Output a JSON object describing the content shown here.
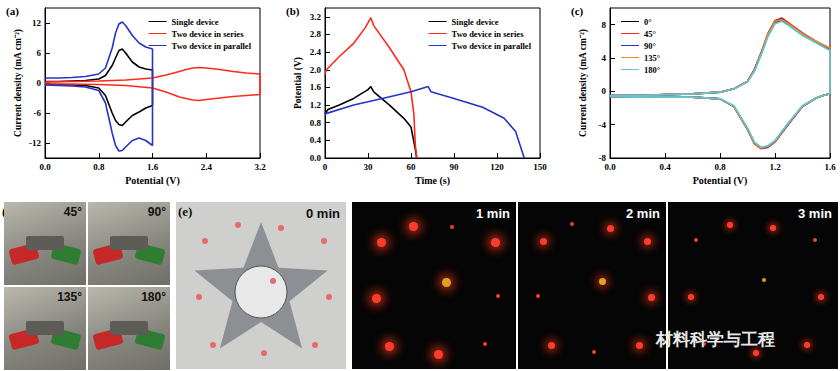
{
  "chart_data": [
    {
      "type": "line",
      "title": "(a)",
      "x_label": "Potential (V)",
      "y_label": "Current density (mA cm⁻²)",
      "xlim": [
        0,
        3.2
      ],
      "xticks": [
        {
          "value": 0,
          "label": "0.0"
        },
        0.8,
        1.6,
        2.4,
        3.2
      ],
      "ylim": [
        -15,
        15
      ],
      "yticks": [
        -12,
        -6,
        0,
        6,
        12
      ],
      "grid": false,
      "legend": "upper right",
      "series": [
        {
          "name": "Single device",
          "color": "#000000",
          "x": [
            0,
            0.2,
            0.4,
            0.6,
            0.8,
            0.9,
            1.0,
            1.05,
            1.1,
            1.15,
            1.2,
            1.3,
            1.4,
            1.5,
            1.6,
            1.6,
            1.5,
            1.4,
            1.3,
            1.2,
            1.15,
            1.1,
            1.05,
            1.0,
            0.9,
            0.8,
            0.6,
            0.4,
            0.2,
            0
          ],
          "values": [
            0.3,
            0.3,
            0.4,
            0.5,
            0.8,
            1.5,
            3.5,
            5.0,
            6.5,
            6.8,
            6.0,
            4.2,
            3.2,
            2.8,
            2.6,
            -4.5,
            -5.0,
            -5.8,
            -6.5,
            -7.8,
            -8.5,
            -8.3,
            -7.5,
            -6.0,
            -2.5,
            -1.0,
            -0.5,
            -0.4,
            -0.3,
            -0.2
          ]
        },
        {
          "name": "Two device in series",
          "color": "#ff2a1a",
          "x": [
            0,
            0.4,
            0.8,
            1.2,
            1.6,
            1.8,
            2.0,
            2.1,
            2.2,
            2.3,
            2.4,
            2.6,
            2.8,
            3.0,
            3.2,
            3.2,
            3.0,
            2.8,
            2.6,
            2.4,
            2.3,
            2.2,
            2.0,
            1.8,
            1.6,
            1.2,
            0.8,
            0.4,
            0
          ],
          "values": [
            0.2,
            0.3,
            0.4,
            0.6,
            1.0,
            1.6,
            2.3,
            2.7,
            3.0,
            3.1,
            3.0,
            2.7,
            2.3,
            2.0,
            1.8,
            -2.3,
            -2.5,
            -2.7,
            -3.0,
            -3.3,
            -3.5,
            -3.4,
            -2.8,
            -1.8,
            -1.0,
            -0.5,
            -0.3,
            -0.2,
            -0.2
          ]
        },
        {
          "name": "Two device in parallel",
          "color": "#2335c8",
          "x": [
            0,
            0.2,
            0.4,
            0.6,
            0.8,
            0.9,
            1.0,
            1.05,
            1.1,
            1.15,
            1.2,
            1.3,
            1.4,
            1.5,
            1.6,
            1.6,
            1.5,
            1.4,
            1.3,
            1.2,
            1.15,
            1.1,
            1.05,
            1.0,
            0.9,
            0.8,
            0.6,
            0.4,
            0.2,
            0
          ],
          "values": [
            1.0,
            1.0,
            1.1,
            1.3,
            1.8,
            3.0,
            7.0,
            10.0,
            11.8,
            12.2,
            11.5,
            9.5,
            8.0,
            7.2,
            6.8,
            -12.5,
            -11.5,
            -11.0,
            -11.5,
            -12.8,
            -13.5,
            -13.6,
            -12.5,
            -10.0,
            -4.0,
            -1.5,
            -0.8,
            -0.6,
            -0.5,
            -0.4
          ]
        }
      ]
    },
    {
      "type": "line",
      "title": "(b)",
      "x_label": "Time (s)",
      "y_label": "Potential (V)",
      "xlim": [
        0,
        150
      ],
      "xticks": [
        0,
        30,
        60,
        90,
        120,
        150
      ],
      "ylim": [
        0,
        3.4
      ],
      "yticks": [
        {
          "value": 0,
          "label": "0.0"
        },
        0.4,
        0.8,
        1.2,
        1.6,
        {
          "value": 2,
          "label": "2.0"
        },
        2.4,
        2.8,
        3.2
      ],
      "grid": false,
      "legend": "upper right",
      "series": [
        {
          "name": "Single device",
          "color": "#000000",
          "x": [
            0,
            2,
            10,
            20,
            30,
            32,
            34,
            45,
            55,
            60,
            63,
            64
          ],
          "values": [
            1.0,
            1.1,
            1.2,
            1.35,
            1.55,
            1.62,
            1.5,
            1.2,
            0.9,
            0.7,
            0.2,
            0
          ]
        },
        {
          "name": "Two device in series",
          "color": "#ff2a1a",
          "x": [
            0,
            1,
            10,
            20,
            28,
            32,
            34,
            45,
            55,
            60,
            62,
            63,
            64
          ],
          "values": [
            1.9,
            2.0,
            2.3,
            2.6,
            2.95,
            3.18,
            3.0,
            2.5,
            2.0,
            1.5,
            1.0,
            0.3,
            0
          ]
        },
        {
          "name": "Two device in parallel",
          "color": "#2335c8",
          "x": [
            0,
            20,
            40,
            60,
            72,
            74,
            90,
            110,
            125,
            133,
            137,
            139
          ],
          "values": [
            1.0,
            1.2,
            1.35,
            1.5,
            1.62,
            1.5,
            1.35,
            1.15,
            0.9,
            0.6,
            0.2,
            0
          ]
        }
      ]
    },
    {
      "type": "line",
      "title": "(c)",
      "x_label": "Potential (V)",
      "y_label": "Current density (mA cm⁻²)",
      "xlim": [
        0,
        1.6
      ],
      "xticks": [
        {
          "value": 0,
          "label": "0.0"
        },
        0.4,
        0.8,
        1.2,
        1.6
      ],
      "ylim": [
        -8,
        10
      ],
      "yticks": [
        -8,
        -4,
        0,
        4,
        8
      ],
      "grid": false,
      "legend": "upper left",
      "series": [
        {
          "name": "0°",
          "color": "#000000",
          "x": [
            0,
            0.2,
            0.4,
            0.6,
            0.8,
            0.9,
            1.0,
            1.05,
            1.1,
            1.15,
            1.2,
            1.25,
            1.3,
            1.4,
            1.5,
            1.6,
            1.6,
            1.55,
            1.5,
            1.4,
            1.3,
            1.2,
            1.15,
            1.1,
            1.05,
            1.0,
            0.9,
            0.8,
            0.6,
            0.4,
            0.2,
            0
          ],
          "values": [
            -0.5,
            -0.5,
            -0.4,
            -0.3,
            -0.1,
            0.3,
            1.2,
            2.5,
            4.5,
            6.8,
            8.3,
            8.5,
            8.0,
            6.8,
            5.9,
            5.0,
            -0.3,
            -0.5,
            -0.8,
            -1.8,
            -3.8,
            -6.0,
            -6.6,
            -6.8,
            -6.2,
            -4.5,
            -1.8,
            -0.9,
            -0.7,
            -0.7,
            -0.7,
            -0.6
          ]
        },
        {
          "name": "45°",
          "color": "#ff2a1a",
          "x": [
            0,
            0.2,
            0.4,
            0.6,
            0.8,
            0.9,
            1.0,
            1.05,
            1.1,
            1.15,
            1.2,
            1.25,
            1.3,
            1.4,
            1.5,
            1.6,
            1.6,
            1.55,
            1.5,
            1.4,
            1.3,
            1.2,
            1.15,
            1.1,
            1.05,
            1.0,
            0.9,
            0.8,
            0.6,
            0.4,
            0.2,
            0
          ],
          "values": [
            -0.5,
            -0.5,
            -0.4,
            -0.3,
            -0.1,
            0.3,
            1.2,
            2.6,
            4.7,
            7.0,
            8.5,
            8.8,
            8.2,
            7.0,
            6.0,
            5.1,
            -0.3,
            -0.5,
            -0.8,
            -1.8,
            -3.9,
            -6.1,
            -6.7,
            -6.9,
            -6.3,
            -4.6,
            -1.8,
            -0.9,
            -0.7,
            -0.7,
            -0.7,
            -0.6
          ]
        },
        {
          "name": "90°",
          "color": "#2335c8",
          "x": [
            0,
            0.2,
            0.4,
            0.6,
            0.8,
            0.9,
            1.0,
            1.05,
            1.1,
            1.15,
            1.2,
            1.25,
            1.3,
            1.4,
            1.5,
            1.6,
            1.6,
            1.55,
            1.5,
            1.4,
            1.3,
            1.2,
            1.15,
            1.1,
            1.05,
            1.0,
            0.9,
            0.8,
            0.6,
            0.4,
            0.2,
            0
          ],
          "values": [
            -0.5,
            -0.5,
            -0.4,
            -0.3,
            -0.1,
            0.3,
            1.2,
            2.6,
            4.6,
            6.9,
            8.4,
            8.7,
            8.1,
            6.9,
            6.0,
            5.1,
            -0.3,
            -0.5,
            -0.8,
            -1.8,
            -3.9,
            -6.0,
            -6.7,
            -6.8,
            -6.2,
            -4.5,
            -1.8,
            -0.9,
            -0.7,
            -0.7,
            -0.7,
            -0.6
          ]
        },
        {
          "name": "135°",
          "color": "#f58a1f",
          "x": [
            0,
            0.2,
            0.4,
            0.6,
            0.8,
            0.9,
            1.0,
            1.05,
            1.1,
            1.15,
            1.2,
            1.25,
            1.3,
            1.4,
            1.5,
            1.6,
            1.6,
            1.55,
            1.5,
            1.4,
            1.3,
            1.2,
            1.15,
            1.1,
            1.05,
            1.0,
            0.9,
            0.8,
            0.6,
            0.4,
            0.2,
            0
          ],
          "values": [
            -0.5,
            -0.5,
            -0.4,
            -0.3,
            -0.1,
            0.3,
            1.2,
            2.5,
            4.6,
            6.9,
            8.4,
            8.6,
            8.1,
            6.9,
            6.0,
            5.2,
            -0.3,
            -0.5,
            -0.8,
            -1.8,
            -3.8,
            -6.0,
            -6.6,
            -6.8,
            -6.2,
            -4.5,
            -1.8,
            -0.9,
            -0.7,
            -0.7,
            -0.7,
            -0.6
          ]
        },
        {
          "name": "180°",
          "color": "#5cc8d6",
          "x": [
            0,
            0.2,
            0.4,
            0.6,
            0.8,
            0.9,
            1.0,
            1.05,
            1.1,
            1.15,
            1.2,
            1.25,
            1.3,
            1.4,
            1.5,
            1.6,
            1.6,
            1.55,
            1.5,
            1.4,
            1.3,
            1.2,
            1.15,
            1.1,
            1.05,
            1.0,
            0.9,
            0.8,
            0.6,
            0.4,
            0.2,
            0
          ],
          "values": [
            -0.5,
            -0.5,
            -0.4,
            -0.3,
            -0.1,
            0.3,
            1.1,
            2.4,
            4.4,
            6.6,
            8.1,
            8.4,
            7.9,
            6.7,
            5.8,
            4.9,
            -0.3,
            -0.5,
            -0.8,
            -1.7,
            -3.7,
            -5.9,
            -6.5,
            -6.7,
            -6.1,
            -4.4,
            -1.7,
            -0.9,
            -0.7,
            -0.7,
            -0.7,
            -0.6
          ]
        }
      ]
    }
  ],
  "photos": {
    "d": {
      "label": "(d)",
      "angles": [
        "45°",
        "90°",
        "135°",
        "180°"
      ]
    },
    "e": {
      "label": "(e)",
      "times": [
        "0 min",
        "1 min",
        "2 min",
        "3 min"
      ],
      "watermark": "材料科学与工程"
    }
  }
}
